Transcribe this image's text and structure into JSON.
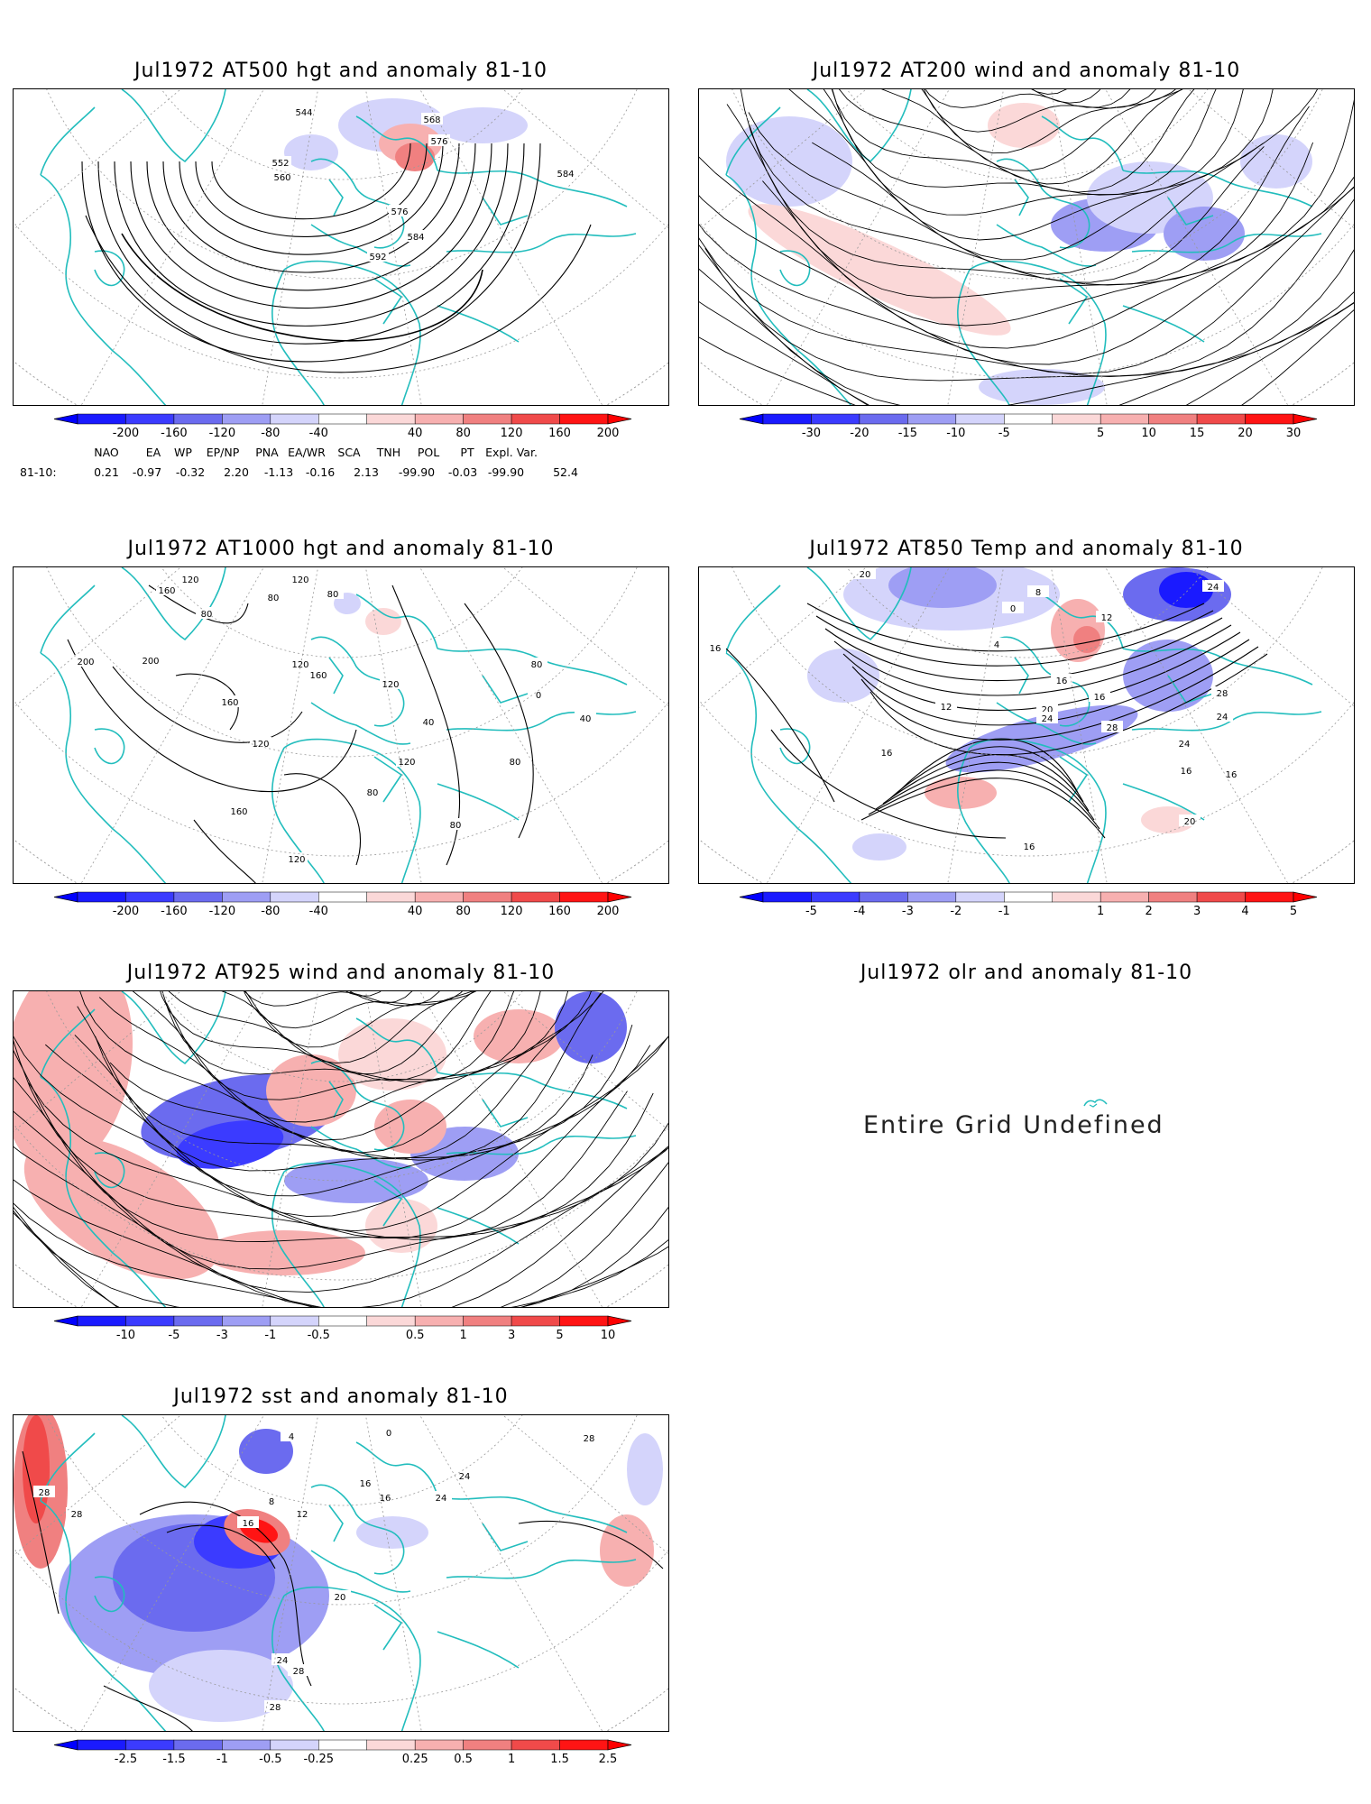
{
  "panels": [
    {
      "id": "p1",
      "title": "Jul1972 AT500 hgt and anomaly 81-10",
      "colorbar_labels": [
        "-200",
        "-160",
        "-120",
        "-80",
        "-40",
        "40",
        "80",
        "120",
        "160",
        "200"
      ],
      "contour_labels": [
        "544",
        "552",
        "560",
        "568",
        "576",
        "576",
        "584",
        "584",
        "592"
      ]
    },
    {
      "id": "p2",
      "title": "Jul1972 AT200 wind and anomaly 81-10",
      "colorbar_labels": [
        "-30",
        "-20",
        "-15",
        "-10",
        "-5",
        "5",
        "10",
        "15",
        "20",
        "30"
      ],
      "contour_labels": []
    },
    {
      "id": "p3",
      "title": "Jul1972 AT1000 hgt and anomaly 81-10",
      "colorbar_labels": [
        "-200",
        "-160",
        "-120",
        "-80",
        "-40",
        "40",
        "80",
        "120",
        "160",
        "200"
      ],
      "contour_labels": [
        "120",
        "120",
        "160",
        "80",
        "80",
        "80",
        "200",
        "200",
        "160",
        "120",
        "160",
        "120",
        "80",
        "0",
        "40",
        "40",
        "80",
        "120",
        "120",
        "80",
        "160",
        "80",
        "120"
      ]
    },
    {
      "id": "p4",
      "title": "Jul1972 AT850 Temp and anomaly 81-10",
      "colorbar_labels": [
        "-5",
        "-4",
        "-3",
        "-2",
        "-1",
        "1",
        "2",
        "3",
        "4",
        "5"
      ],
      "contour_labels": [
        "20",
        "16",
        "8",
        "0",
        "12",
        "4",
        "24",
        "16",
        "12",
        "28",
        "20",
        "24",
        "16",
        "16",
        "28",
        "24",
        "24",
        "16",
        "16",
        "20",
        "16"
      ]
    },
    {
      "id": "p5",
      "title": "Jul1972 AT925 wind and anomaly 81-10",
      "colorbar_labels": [
        "-10",
        "-5",
        "-3",
        "-1",
        "-0.5",
        "0.5",
        "1",
        "3",
        "5",
        "10"
      ],
      "contour_labels": []
    },
    {
      "id": "p6",
      "title": "Jul1972 olr and anomaly 81-10",
      "message": "Entire Grid Undefined"
    },
    {
      "id": "p7",
      "title": "Jul1972 sst and anomaly 81-10",
      "colorbar_labels": [
        "-2.5",
        "-1.5",
        "-1",
        "-0.5",
        "-0.25",
        "0.25",
        "0.5",
        "1",
        "1.5",
        "2.5"
      ],
      "contour_labels": [
        "28",
        "28",
        "28",
        "16",
        "12",
        "8",
        "0",
        "4",
        "16",
        "16",
        "24",
        "24",
        "20",
        "24",
        "28",
        "28"
      ]
    }
  ],
  "indices": {
    "headers": [
      "NAO",
      "EA",
      "WP",
      "EP/NP",
      "PNA",
      "EA/WR",
      "SCA",
      "TNH",
      "POL",
      "PT",
      "Expl. Var."
    ],
    "row_label": "81-10:",
    "values": [
      "0.21",
      "-0.97",
      "-0.32",
      "2.20",
      "-1.13",
      "-0.16",
      "2.13",
      "-99.90",
      "-0.03",
      "-99.90",
      "52.4"
    ]
  },
  "colors": {
    "coast": "#22bdbd",
    "contour": "#000000",
    "grid": "#999999",
    "blues": [
      "#1a1aff",
      "#3b3bff",
      "#6b6bef",
      "#9e9ef4",
      "#d4d4fb"
    ],
    "reds": [
      "#fbd8d8",
      "#f7b0b0",
      "#f08080",
      "#f04a4a",
      "#ff1414"
    ]
  }
}
